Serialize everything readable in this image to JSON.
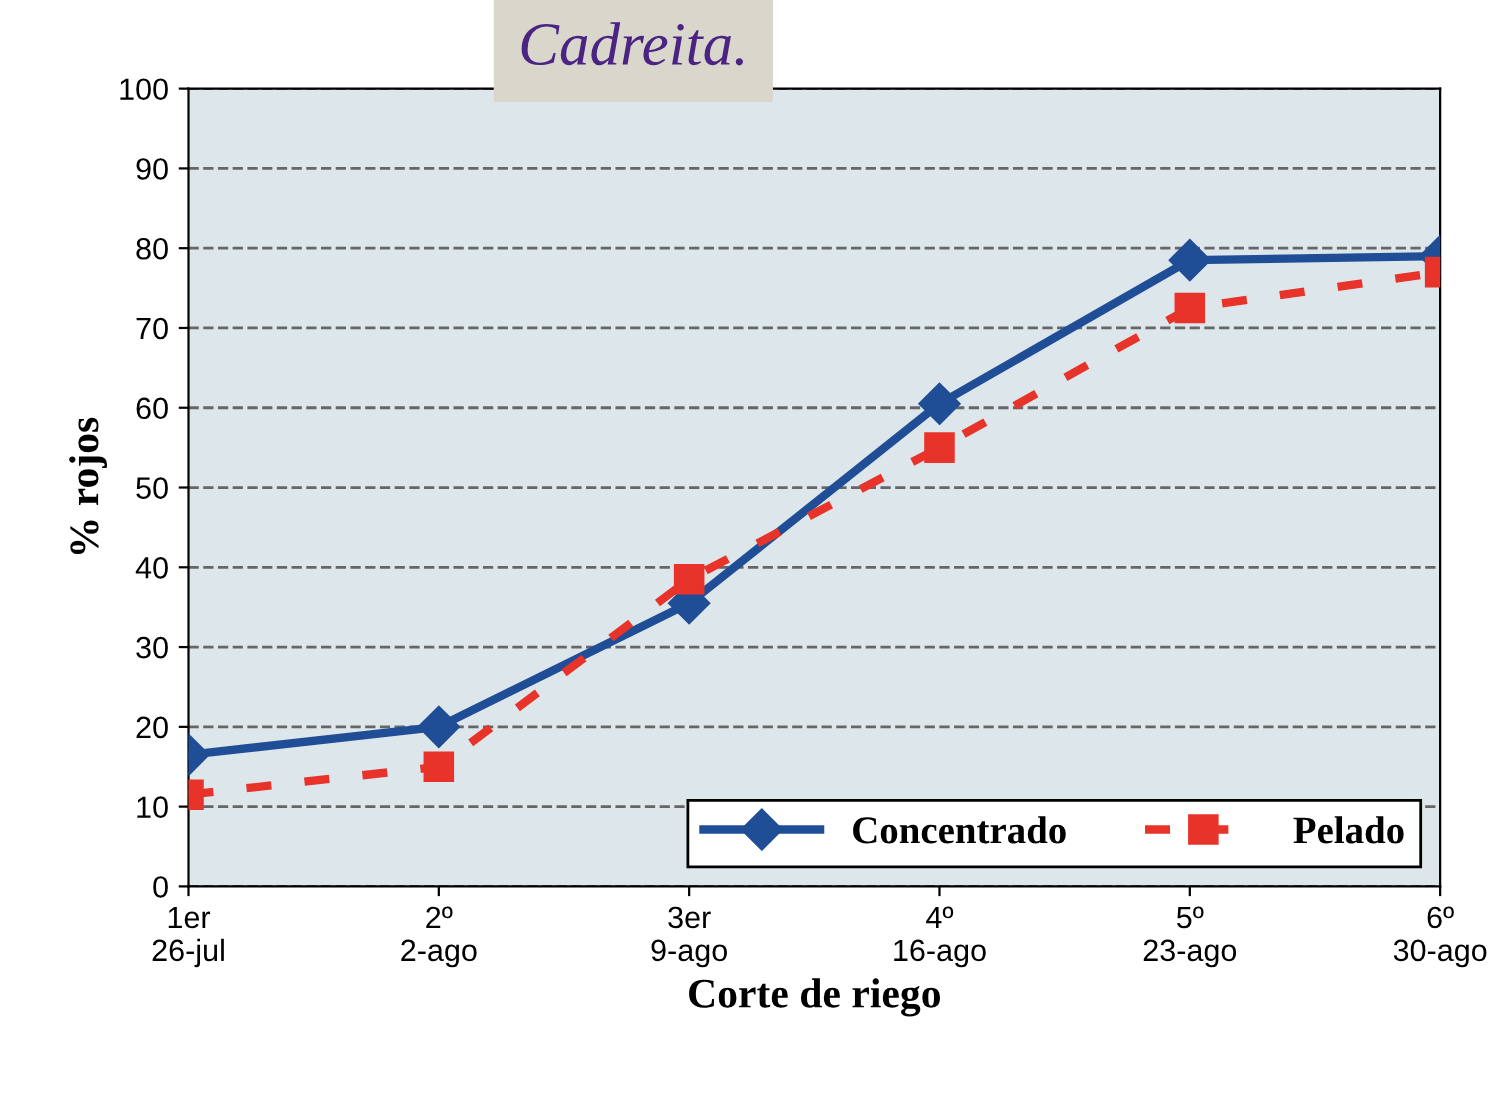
{
  "chart_data": {
    "type": "line",
    "xlabel": "Corte de riego",
    "ylabel": "% rojos",
    "categories": [
      "1er\n26-jul",
      "2º\n2-ago",
      "3er\n9-ago",
      "4º\n16-ago",
      "5º\n23-ago",
      "6º\n30-ago"
    ],
    "series": [
      {
        "name": "Concentrado",
        "color": "#1f4e96",
        "marker": "diamond",
        "line_style": "solid",
        "values": [
          16.5,
          20,
          35.5,
          60.5,
          78.5,
          79
        ]
      },
      {
        "name": "Pelado",
        "color": "#e8332a",
        "marker": "square",
        "line_style": "dashed",
        "values": [
          11.5,
          15,
          38.5,
          55,
          72.5,
          77
        ]
      }
    ],
    "ylim": [
      0,
      100
    ],
    "yticks": [
      0,
      10,
      20,
      30,
      40,
      50,
      60,
      70,
      80,
      90,
      100
    ],
    "grid": "y",
    "legend": "bottom right",
    "annotations": [
      "Cadreita."
    ]
  }
}
